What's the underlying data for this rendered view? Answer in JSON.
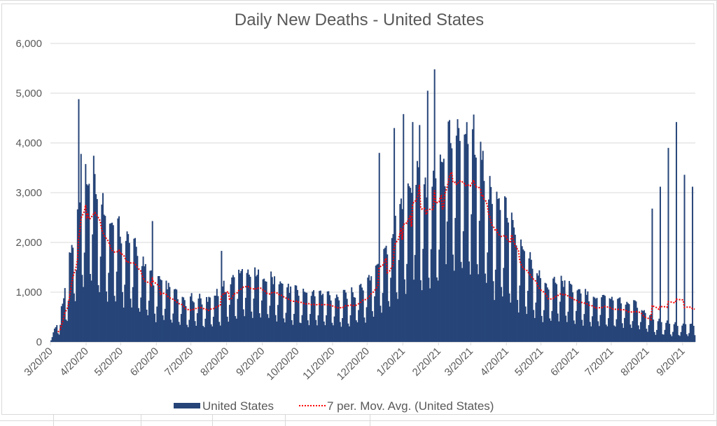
{
  "chart_data": {
    "type": "bar",
    "title": "Daily New Deaths - United States",
    "xlabel": "",
    "ylabel": "",
    "ylim": [
      0,
      6000
    ],
    "yticks": [
      "0",
      "1,000",
      "2,000",
      "3,000",
      "4,000",
      "5,000",
      "6,000"
    ],
    "ytick_values": [
      0,
      1000,
      2000,
      3000,
      4000,
      5000,
      6000
    ],
    "grid": true,
    "x_start": "3/20/20",
    "x_end": "9/30/21",
    "xticks": [
      "3/20/20",
      "4/20/20",
      "5/20/20",
      "6/20/20",
      "7/20/20",
      "8/20/20",
      "9/20/20",
      "10/20/20",
      "11/20/20",
      "12/20/20",
      "1/20/21",
      "2/20/21",
      "3/20/21",
      "4/20/21",
      "5/20/21",
      "6/20/21",
      "7/20/21",
      "8/20/21",
      "9/20/21"
    ],
    "xtick_day_offsets": [
      0,
      31,
      61,
      92,
      122,
      153,
      184,
      214,
      245,
      275,
      306,
      337,
      365,
      396,
      426,
      457,
      487,
      518,
      549
    ],
    "total_days": 560,
    "legend_position": "bottom",
    "series": [
      {
        "name": "United States",
        "kind": "bar",
        "color": "#264478",
        "weekly_average_basis": [
          80,
          350,
          1000,
          1800,
          2300,
          2700,
          2200,
          1950,
          1800,
          1700,
          1500,
          1300,
          1100,
          950,
          900,
          800,
          700,
          600,
          750,
          600,
          700,
          800,
          900,
          1050,
          1150,
          1100,
          1050,
          1000,
          950,
          850,
          800,
          780,
          750,
          750,
          730,
          720,
          700,
          720,
          800,
          900,
          1100,
          1350,
          1600,
          2000,
          2250,
          2550,
          2450,
          2250,
          2650,
          3250,
          3300,
          3150,
          3200,
          3100,
          2450,
          2000,
          2150,
          1850,
          1450,
          1350,
          1100,
          950,
          900,
          1000,
          900,
          800,
          730,
          720,
          700,
          700,
          650,
          620,
          600,
          550,
          430,
          330,
          300,
          280,
          260,
          260,
          270,
          300,
          420,
          600,
          800,
          1050,
          1300,
          1550,
          1800,
          2000,
          2150,
          2050,
          2050
        ],
        "weekday_factors": [
          0.45,
          0.75,
          1.35,
          1.35,
          1.3,
          1.25,
          0.55
        ],
        "spikes": [
          {
            "day": 24,
            "value": 4880
          },
          {
            "day": 26,
            "value": 3780
          },
          {
            "day": 31,
            "value": 3170
          },
          {
            "day": 88,
            "value": 2430
          },
          {
            "day": 148,
            "value": 1830
          },
          {
            "day": 285,
            "value": 3800
          },
          {
            "day": 298,
            "value": 4300
          },
          {
            "day": 306,
            "value": 4580
          },
          {
            "day": 314,
            "value": 4420
          },
          {
            "day": 320,
            "value": 4360
          },
          {
            "day": 327,
            "value": 5050
          },
          {
            "day": 333,
            "value": 5480
          },
          {
            "day": 342,
            "value": 3130
          },
          {
            "day": 400,
            "value": 2600
          },
          {
            "day": 443,
            "value": 1330
          },
          {
            "day": 522,
            "value": 2680
          },
          {
            "day": 529,
            "value": 3120
          },
          {
            "day": 536,
            "value": 3900
          },
          {
            "day": 543,
            "value": 4420
          },
          {
            "day": 550,
            "value": 3360
          },
          {
            "day": 557,
            "value": 3120
          }
        ]
      },
      {
        "name": "7 per. Mov. Avg. (United States)",
        "kind": "line",
        "style": "dotted",
        "color": "#ff0000"
      }
    ]
  }
}
